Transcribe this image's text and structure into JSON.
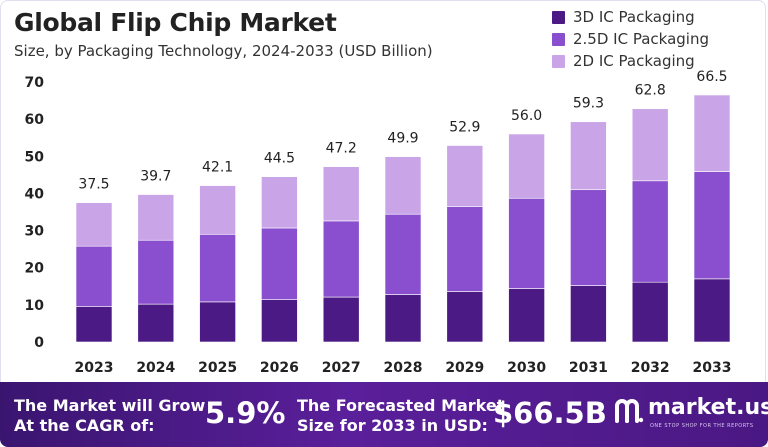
{
  "title": "Global Flip Chip Market",
  "subtitle": "Size, by Packaging Technology, 2024-2033 (USD Billion)",
  "colors": {
    "3d": "#4b1a85",
    "2_5d": "#8a4fcf",
    "2d": "#c9a5e8",
    "footer": "#4a1883"
  },
  "chart_data": {
    "type": "bar",
    "stacked": true,
    "categories": [
      "2023",
      "2024",
      "2025",
      "2026",
      "2027",
      "2028",
      "2029",
      "2030",
      "2031",
      "2032",
      "2033"
    ],
    "series": [
      {
        "name": "3D IC Packaging",
        "values": [
          9.6,
          10.2,
          10.8,
          11.4,
          12.1,
          12.8,
          13.6,
          14.4,
          15.2,
          16.1,
          17.0
        ]
      },
      {
        "name": "2.5D IC Packaging",
        "values": [
          16.2,
          17.2,
          18.2,
          19.3,
          20.5,
          21.6,
          22.9,
          24.3,
          25.8,
          27.3,
          28.9
        ]
      },
      {
        "name": "2D IC Packaging",
        "values": [
          11.7,
          12.3,
          13.1,
          13.8,
          14.6,
          15.5,
          16.4,
          17.3,
          18.3,
          19.4,
          20.6
        ]
      }
    ],
    "totals": [
      "37.5",
      "39.7",
      "42.1",
      "44.5",
      "47.2",
      "49.9",
      "52.9",
      "56.0",
      "59.3",
      "62.8",
      "66.5"
    ],
    "ylim": [
      0,
      70
    ],
    "yticks": [
      "0",
      "10",
      "20",
      "30",
      "40",
      "50",
      "60",
      "70"
    ],
    "grid": false,
    "legend": "top-right"
  },
  "footer": {
    "cagr_label_1": "The Market will Grow",
    "cagr_label_2": "At the CAGR of:",
    "cagr_value": "5.9%",
    "forecast_label_1": "The Forecasted Market",
    "forecast_label_2": "Size for 2033 in USD:",
    "forecast_value": "$66.5B",
    "brand": "market.us",
    "brand_tagline": "ONE STOP SHOP FOR THE REPORTS"
  }
}
